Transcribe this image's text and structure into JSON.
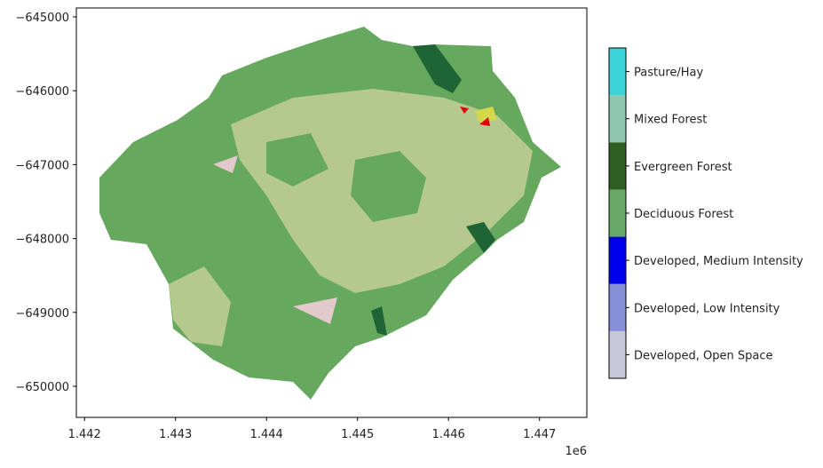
{
  "chart_data": {
    "type": "map",
    "xlim": [
      1.44191,
      1.44752
    ],
    "xticks": [
      1.442,
      1.443,
      1.444,
      1.445,
      1.446,
      1.447
    ],
    "x_offset_label": "1e6",
    "ylim": [
      -650421,
      -644880
    ],
    "yticks": [
      {
        "value": -645000,
        "label": "−645000"
      },
      {
        "value": -646000,
        "label": "−646000"
      },
      {
        "value": -647000,
        "label": "−647000"
      },
      {
        "value": -648000,
        "label": "−648000"
      },
      {
        "value": -649000,
        "label": "−649000"
      },
      {
        "value": -650000,
        "label": "−650000"
      }
    ],
    "colorbar": {
      "categories": [
        "Developed, Open Space",
        "Developed, Low Intensity",
        "Developed, Medium Intensity",
        "Deciduous Forest",
        "Evergreen Forest",
        "Mixed Forest",
        "Pasture/Hay"
      ],
      "colors": [
        "#c7c8da",
        "#8591d6",
        "#0000ee",
        "#66a866",
        "#2f5e22",
        "#8ec6b0",
        "#3bd5d8"
      ]
    }
  }
}
